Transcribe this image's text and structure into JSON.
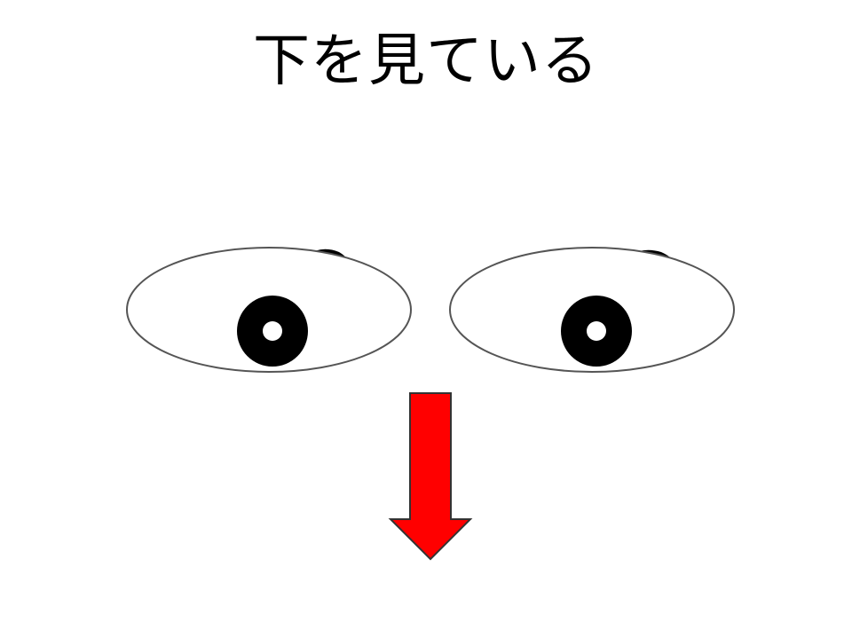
{
  "slide": {
    "title": "下を見ている"
  },
  "eyes": [
    {
      "side": "left",
      "gaze": "down"
    },
    {
      "side": "right",
      "gaze": "down"
    }
  ],
  "arrow": {
    "direction": "down",
    "fill_color": "#ff0000",
    "stroke_color": "#333333"
  },
  "colors": {
    "background": "#ffffff",
    "eye_outline": "#555555",
    "pupil": "#000000",
    "highlight": "#ffffff"
  }
}
